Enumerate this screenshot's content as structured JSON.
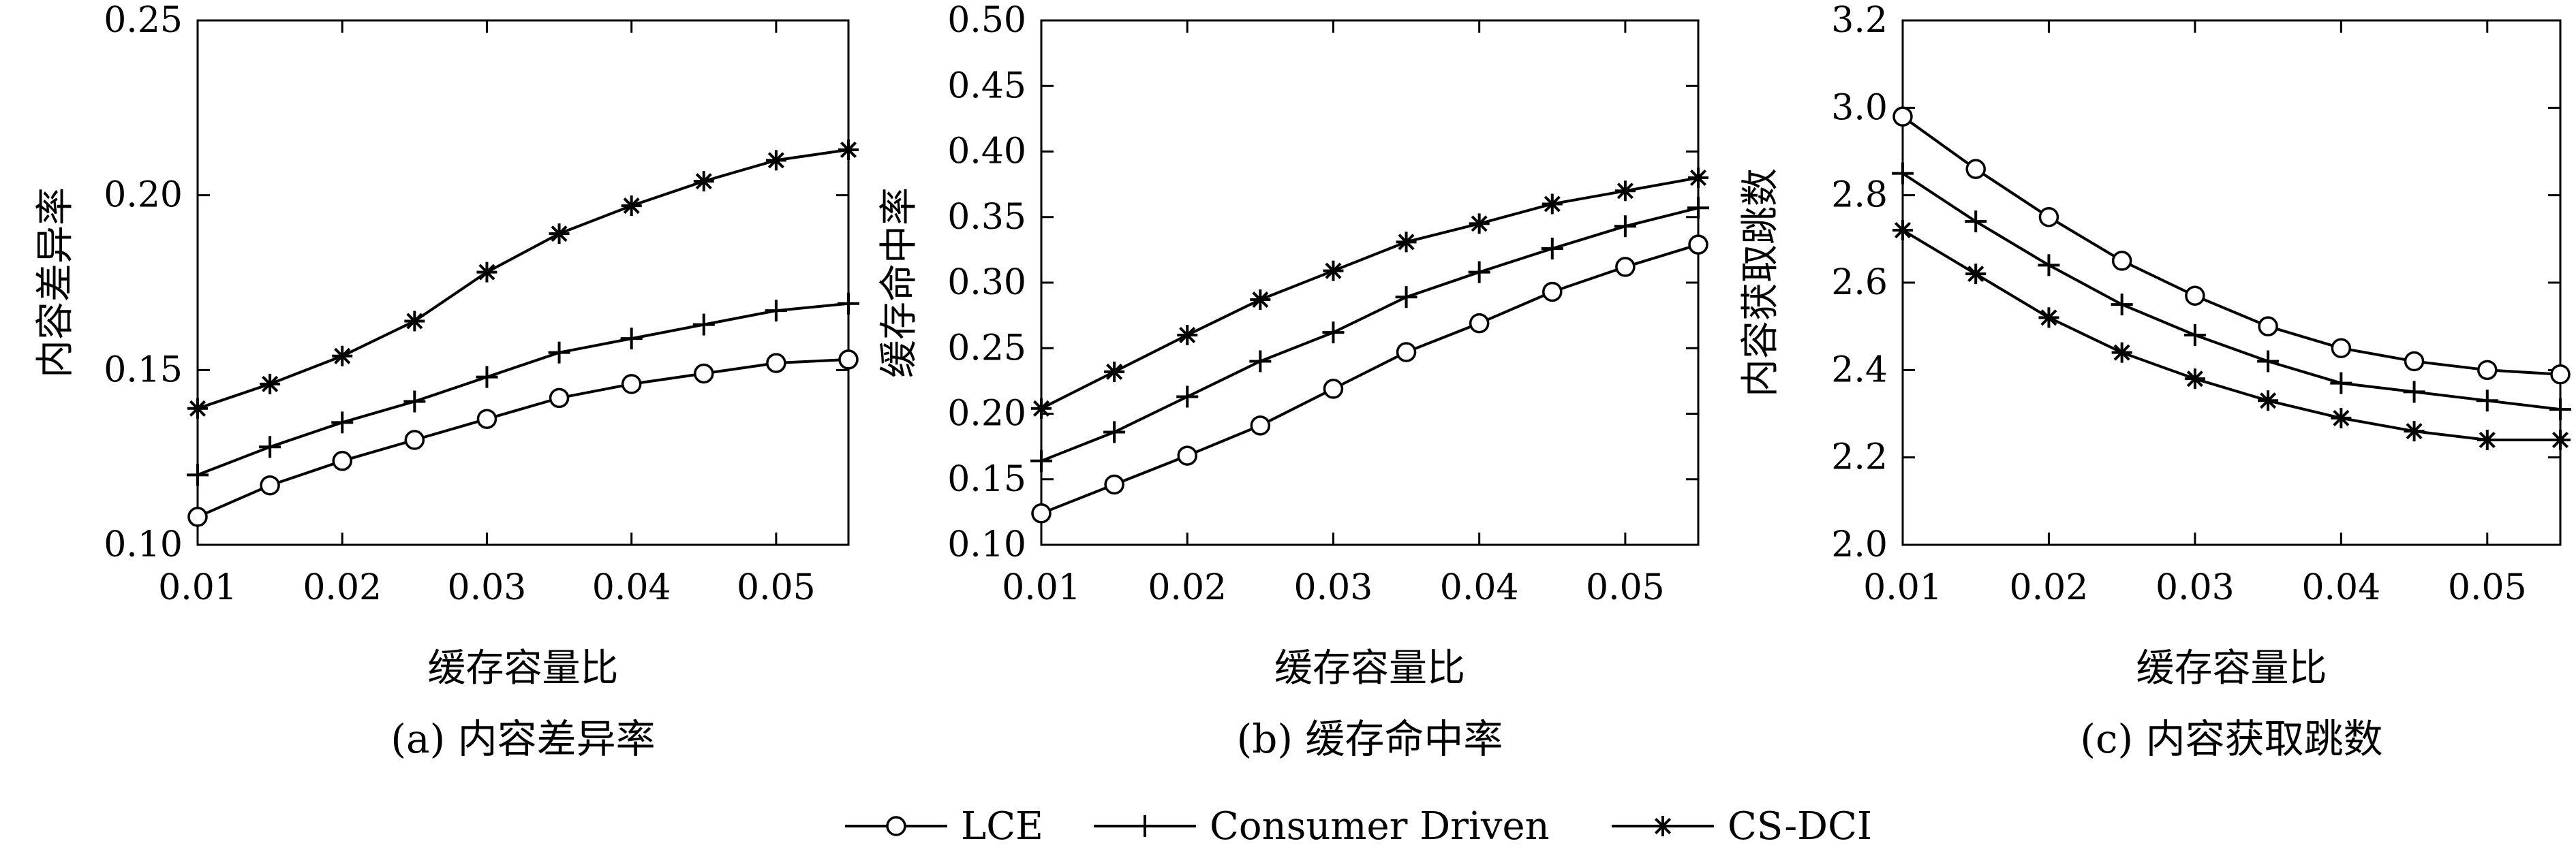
{
  "legend": [
    {
      "label": "LCE",
      "marker": "circle"
    },
    {
      "label": "Consumer Driven",
      "marker": "plus"
    },
    {
      "label": "CS-DCI",
      "marker": "asterisk"
    }
  ],
  "chart_data": [
    {
      "type": "line",
      "caption": "(a) 内容差异率",
      "xlabel": "缓存容量比",
      "ylabel": "内容差异率",
      "xlim": [
        0.01,
        0.055
      ],
      "ylim": [
        0.1,
        0.25
      ],
      "xticks": [
        0.01,
        0.02,
        0.03,
        0.04,
        0.05
      ],
      "xtick_labels": [
        "0.01",
        "0.02",
        "0.03",
        "0.04",
        "0.05"
      ],
      "yticks": [
        0.1,
        0.15,
        0.2,
        0.25
      ],
      "ytick_labels": [
        "0.10",
        "0.15",
        "0.20",
        "0.25"
      ],
      "grid": false,
      "series": [
        {
          "name": "LCE",
          "marker": "circle",
          "x": [
            0.01,
            0.015,
            0.02,
            0.025,
            0.03,
            0.035,
            0.04,
            0.045,
            0.05,
            0.055
          ],
          "y": [
            0.108,
            0.117,
            0.124,
            0.13,
            0.136,
            0.142,
            0.146,
            0.149,
            0.152,
            0.153
          ]
        },
        {
          "name": "Consumer Driven",
          "marker": "plus",
          "x": [
            0.01,
            0.015,
            0.02,
            0.025,
            0.03,
            0.035,
            0.04,
            0.045,
            0.05,
            0.055
          ],
          "y": [
            0.12,
            0.128,
            0.135,
            0.141,
            0.148,
            0.155,
            0.159,
            0.163,
            0.167,
            0.169
          ]
        },
        {
          "name": "CS-DCI",
          "marker": "asterisk",
          "x": [
            0.01,
            0.015,
            0.02,
            0.025,
            0.03,
            0.035,
            0.04,
            0.045,
            0.05,
            0.055
          ],
          "y": [
            0.139,
            0.146,
            0.154,
            0.164,
            0.178,
            0.189,
            0.197,
            0.204,
            0.21,
            0.213
          ]
        }
      ]
    },
    {
      "type": "line",
      "caption": "(b) 缓存命中率",
      "xlabel": "缓存容量比",
      "ylabel": "缓存命中率",
      "xlim": [
        0.01,
        0.055
      ],
      "ylim": [
        0.1,
        0.5
      ],
      "xticks": [
        0.01,
        0.02,
        0.03,
        0.04,
        0.05
      ],
      "xtick_labels": [
        "0.01",
        "0.02",
        "0.03",
        "0.04",
        "0.05"
      ],
      "yticks": [
        0.1,
        0.15,
        0.2,
        0.25,
        0.3,
        0.35,
        0.4,
        0.45,
        0.5
      ],
      "ytick_labels": [
        "0.10",
        "0.15",
        "0.20",
        "0.25",
        "0.30",
        "0.35",
        "0.40",
        "0.45",
        "0.50"
      ],
      "grid": false,
      "series": [
        {
          "name": "LCE",
          "marker": "circle",
          "x": [
            0.01,
            0.015,
            0.02,
            0.025,
            0.03,
            0.035,
            0.04,
            0.045,
            0.05,
            0.055
          ],
          "y": [
            0.124,
            0.146,
            0.168,
            0.191,
            0.219,
            0.247,
            0.269,
            0.293,
            0.312,
            0.329
          ]
        },
        {
          "name": "Consumer Driven",
          "marker": "plus",
          "x": [
            0.01,
            0.015,
            0.02,
            0.025,
            0.03,
            0.035,
            0.04,
            0.045,
            0.05,
            0.055
          ],
          "y": [
            0.164,
            0.186,
            0.213,
            0.24,
            0.262,
            0.289,
            0.308,
            0.326,
            0.343,
            0.357
          ]
        },
        {
          "name": "CS-DCI",
          "marker": "asterisk",
          "x": [
            0.01,
            0.015,
            0.02,
            0.025,
            0.03,
            0.035,
            0.04,
            0.045,
            0.05,
            0.055
          ],
          "y": [
            0.204,
            0.232,
            0.26,
            0.287,
            0.309,
            0.331,
            0.345,
            0.36,
            0.37,
            0.38
          ]
        }
      ]
    },
    {
      "type": "line",
      "caption": "(c) 内容获取跳数",
      "xlabel": "缓存容量比",
      "ylabel": "内容获取跳数",
      "xlim": [
        0.01,
        0.055
      ],
      "ylim": [
        2.0,
        3.2
      ],
      "xticks": [
        0.01,
        0.02,
        0.03,
        0.04,
        0.05
      ],
      "xtick_labels": [
        "0.01",
        "0.02",
        "0.03",
        "0.04",
        "0.05"
      ],
      "yticks": [
        2.0,
        2.2,
        2.4,
        2.6,
        2.8,
        3.0,
        3.2
      ],
      "ytick_labels": [
        "2.0",
        "2.2",
        "2.4",
        "2.6",
        "2.8",
        "3.0",
        "3.2"
      ],
      "grid": false,
      "series": [
        {
          "name": "LCE",
          "marker": "circle",
          "x": [
            0.01,
            0.015,
            0.02,
            0.025,
            0.03,
            0.035,
            0.04,
            0.045,
            0.05,
            0.055
          ],
          "y": [
            2.98,
            2.86,
            2.75,
            2.65,
            2.57,
            2.5,
            2.45,
            2.42,
            2.4,
            2.39
          ]
        },
        {
          "name": "Consumer Driven",
          "marker": "plus",
          "x": [
            0.01,
            0.015,
            0.02,
            0.025,
            0.03,
            0.035,
            0.04,
            0.045,
            0.05,
            0.055
          ],
          "y": [
            2.85,
            2.74,
            2.64,
            2.55,
            2.48,
            2.42,
            2.37,
            2.35,
            2.33,
            2.31
          ]
        },
        {
          "name": "CS-DCI",
          "marker": "asterisk",
          "x": [
            0.01,
            0.015,
            0.02,
            0.025,
            0.03,
            0.035,
            0.04,
            0.045,
            0.05,
            0.055
          ],
          "y": [
            2.72,
            2.62,
            2.52,
            2.44,
            2.38,
            2.33,
            2.29,
            2.26,
            2.24,
            2.24
          ]
        }
      ]
    }
  ]
}
